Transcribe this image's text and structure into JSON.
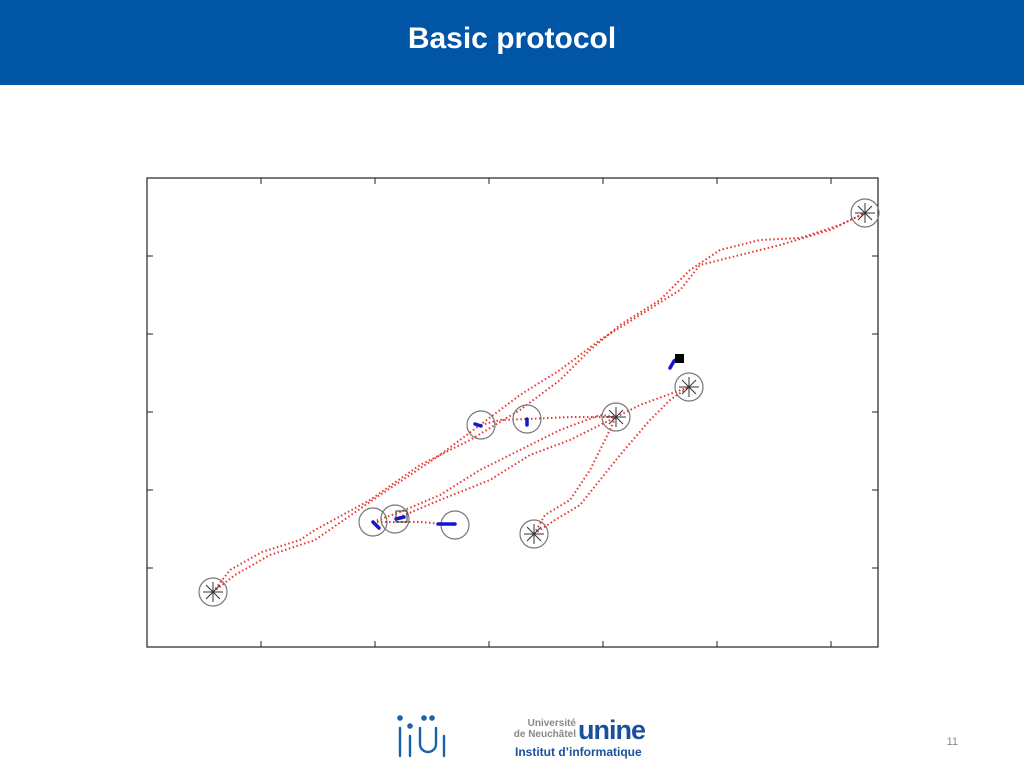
{
  "header": {
    "title": "Basic protocol"
  },
  "footer": {
    "university_line1": "Université",
    "university_line2": "de Neuchâtel",
    "university_mark": "unine",
    "institute": "Institut d’informatique",
    "page_number": "11"
  }
}
